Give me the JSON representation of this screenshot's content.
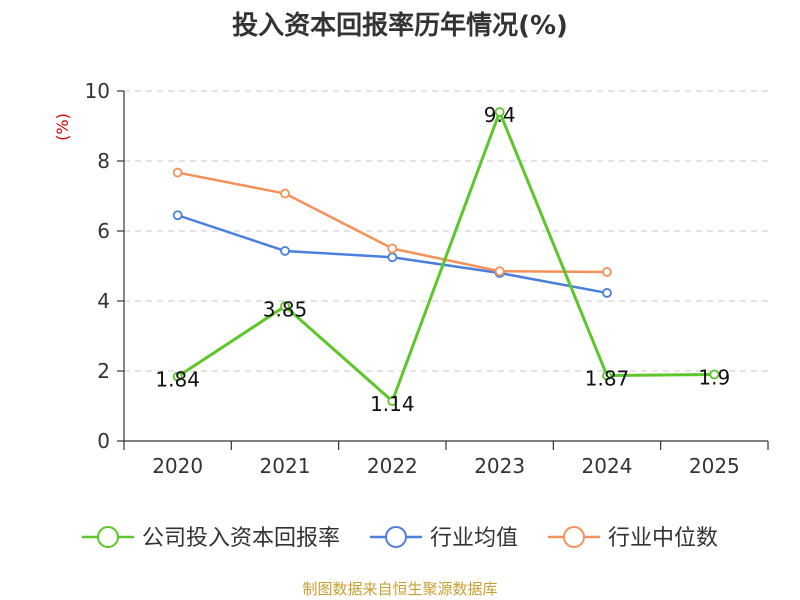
{
  "chart_data": {
    "type": "line",
    "title": "投入资本回报率历年情况(%)",
    "ylabel": "(%)",
    "xlabel": "",
    "categories": [
      "2020",
      "2021",
      "2022",
      "2023",
      "2024",
      "2025"
    ],
    "ylim": [
      0,
      10
    ],
    "yticks": [
      0,
      2,
      4,
      6,
      8,
      10
    ],
    "grid": true,
    "legend_position": "bottom",
    "series": [
      {
        "name": "公司投入资本回报率",
        "color": "#5cc62a",
        "values": [
          1.84,
          3.85,
          1.14,
          9.4,
          1.87,
          1.9
        ],
        "labels": [
          "1.84",
          "3.85",
          "1.14",
          "9.4",
          "1.87",
          "1.9"
        ]
      },
      {
        "name": "行业均值",
        "color": "#4a7fdc",
        "values": [
          6.45,
          5.43,
          5.25,
          4.8,
          4.23,
          null
        ]
      },
      {
        "name": "行业中位数",
        "color": "#f5915a",
        "values": [
          7.67,
          7.07,
          5.5,
          4.85,
          4.83,
          null
        ]
      }
    ]
  },
  "source": "制图数据来自恒生聚源数据库"
}
